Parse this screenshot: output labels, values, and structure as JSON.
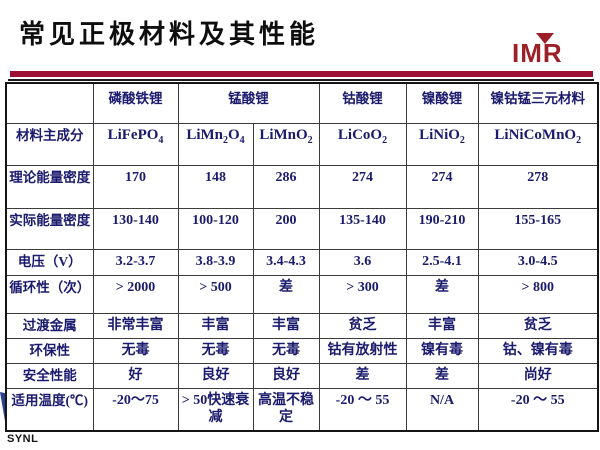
{
  "title": "常见正极材料及其性能",
  "logo": {
    "text": "IMR"
  },
  "footer": {
    "text": "SYNL"
  },
  "colors": {
    "accent_maroon": "#9D0D36",
    "logo_red": "#9C2028",
    "table_text_navy": "#1B1B6E",
    "flag_blue": "#2B3F92"
  },
  "table": {
    "materials_header": [
      {
        "label": "",
        "colspan": 1
      },
      {
        "label": "磷酸铁锂",
        "colspan": 1
      },
      {
        "label": "锰酸锂",
        "colspan": 2
      },
      {
        "label": "钴酸锂",
        "colspan": 1
      },
      {
        "label": "镍酸锂",
        "colspan": 1
      },
      {
        "label": "镍钴锰三元材料",
        "colspan": 1
      }
    ],
    "composition_row": {
      "label": "材料主成分",
      "formulas": [
        [
          {
            "t": "LiFePO"
          },
          {
            "s": "4"
          }
        ],
        [
          {
            "t": "LiMn"
          },
          {
            "s": "2"
          },
          {
            "t": "O"
          },
          {
            "s": "4"
          }
        ],
        [
          {
            "t": "LiMnO"
          },
          {
            "s": "2"
          }
        ],
        [
          {
            "t": "LiCoO"
          },
          {
            "s": "2"
          }
        ],
        [
          {
            "t": "LiNiO"
          },
          {
            "s": "2"
          }
        ],
        [
          {
            "t": "LiNiCoMnO"
          },
          {
            "s": "2"
          }
        ]
      ]
    },
    "rows": [
      {
        "label": "理论能量密度",
        "values": [
          "170",
          "148",
          "286",
          "274",
          "274",
          "278"
        ]
      },
      {
        "label": "实际能量密度",
        "values": [
          "130-140",
          "100-120",
          "200",
          "135-140",
          "190-210",
          "155-165"
        ]
      },
      {
        "label": "电压（V）",
        "values": [
          "3.2-3.7",
          "3.8-3.9",
          "3.4-4.3",
          "3.6",
          "2.5-4.1",
          "3.0-4.5"
        ]
      },
      {
        "label": "循环性（次）",
        "values": [
          "> 2000",
          "> 500",
          "差",
          "> 300",
          "差",
          "> 800"
        ]
      },
      {
        "label": "过渡金属",
        "values": [
          "非常丰富",
          "丰富",
          "丰富",
          "贫乏",
          "丰富",
          "贫乏"
        ]
      },
      {
        "label": "环保性",
        "values": [
          "无毒",
          "无毒",
          "无毒",
          "钴有放射性",
          "镍有毒",
          "钴、镍有毒"
        ]
      },
      {
        "label": "安全性能",
        "values": [
          "好",
          "良好",
          "良好",
          "差",
          "差",
          "尚好"
        ]
      },
      {
        "label": "适用温度(℃)",
        "values": [
          "-20～75",
          "> 50快速衰减",
          "高温不稳定",
          "-20 ～ 55",
          "N/A",
          "-20 ～ 55"
        ]
      }
    ]
  }
}
